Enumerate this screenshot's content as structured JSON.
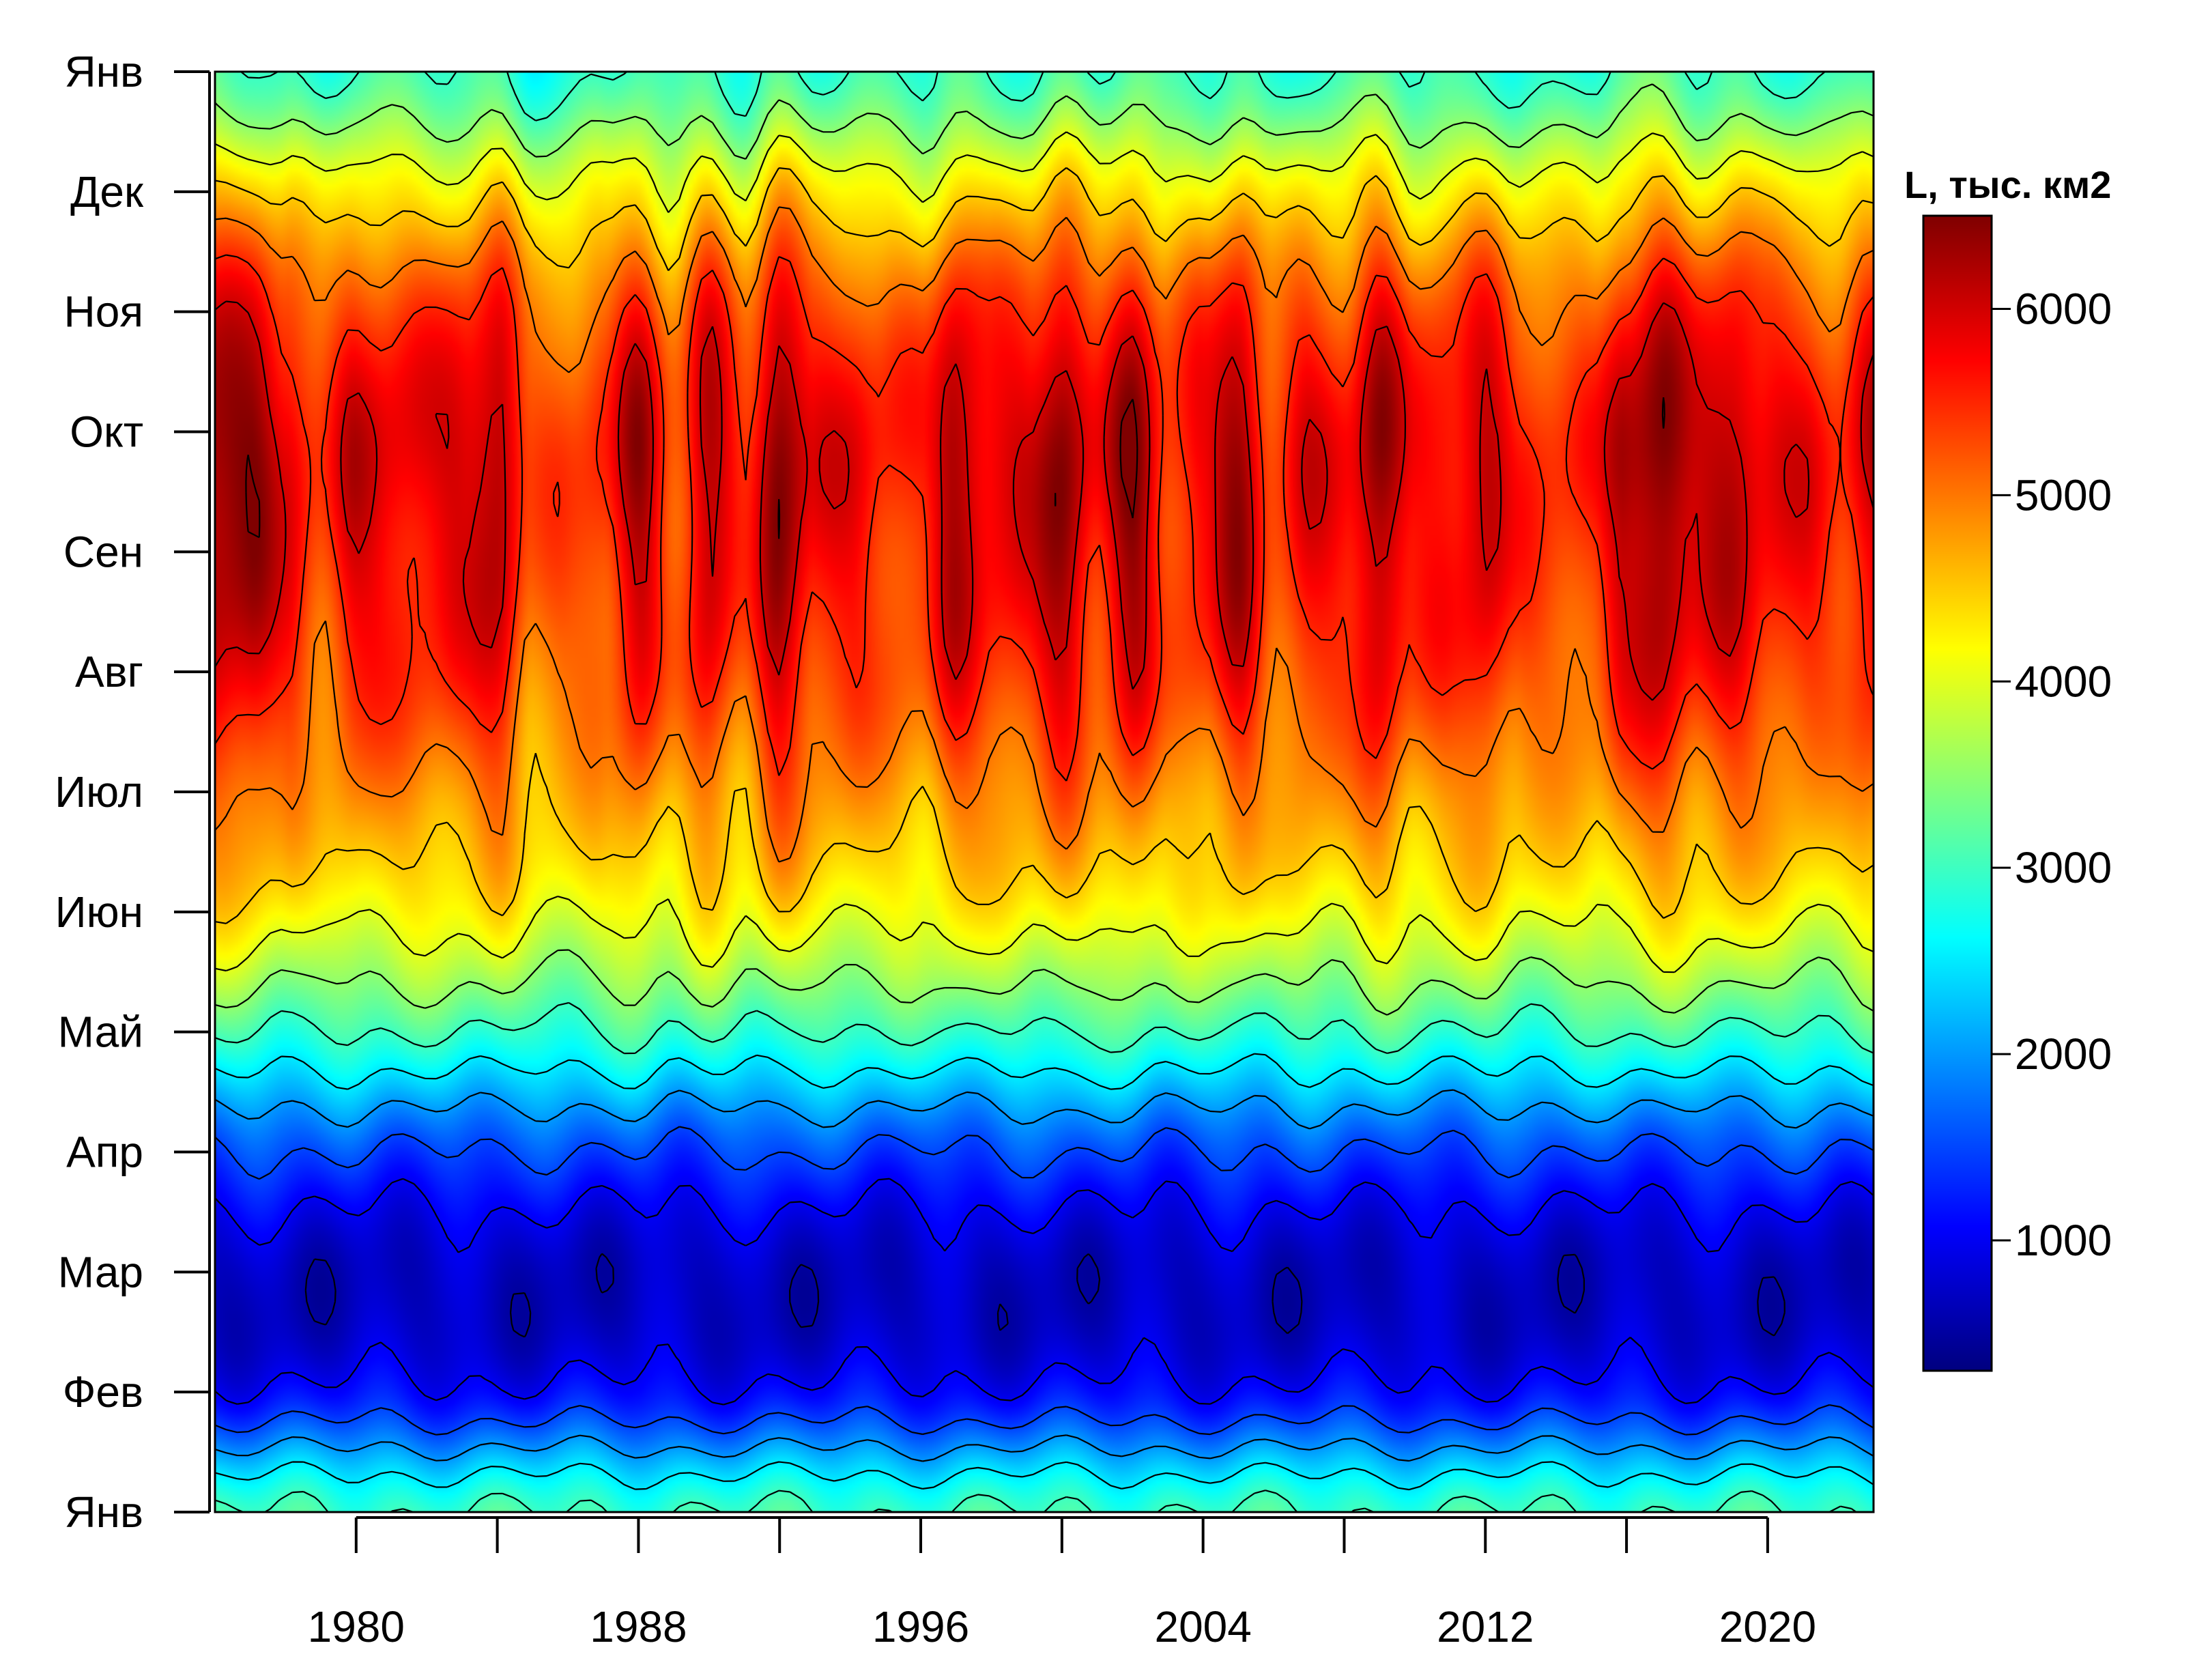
{
  "chart_data": {
    "type": "heatmap",
    "title": "",
    "xlabel": "",
    "ylabel": "",
    "colorbar_title": "L, тыс. км2",
    "x_ticks": [
      1980,
      1988,
      1996,
      2004,
      2012,
      2020
    ],
    "x_tick_labels": [
      "1980",
      "1988",
      "1996",
      "2004",
      "2012",
      "2020"
    ],
    "y_tick_labels": [
      "Янв",
      "Фев",
      "Мар",
      "Апр",
      "Май",
      "Июн",
      "Июл",
      "Авг",
      "Сен",
      "Окт",
      "Ноя",
      "Дек",
      "Янв"
    ],
    "xlim": [
      1976,
      2023
    ],
    "ylim": [
      0,
      12
    ],
    "colorbar_ticks": [
      1000,
      2000,
      3000,
      4000,
      5000,
      6000
    ],
    "colorbar_tick_labels": [
      "1000",
      "2000",
      "3000",
      "4000",
      "5000",
      "6000"
    ],
    "colorbar_range": [
      300,
      6500
    ],
    "colormap": [
      "#00007f",
      "#0000ff",
      "#007fff",
      "#00ffff",
      "#7fff7f",
      "#ffff00",
      "#ff7f00",
      "#ff0000",
      "#7f0000"
    ],
    "contour_interval": 500,
    "monthly_profile": {
      "months": [
        "Янв",
        "Фев",
        "Мар",
        "Апр",
        "Май",
        "Июн",
        "Июл",
        "Авг",
        "Сен",
        "Окт",
        "Ноя",
        "Дек",
        "Янв"
      ],
      "values": [
        3000,
        1100,
        700,
        1500,
        3000,
        4200,
        4900,
        5500,
        5800,
        5900,
        5400,
        4300,
        3000
      ]
    }
  }
}
